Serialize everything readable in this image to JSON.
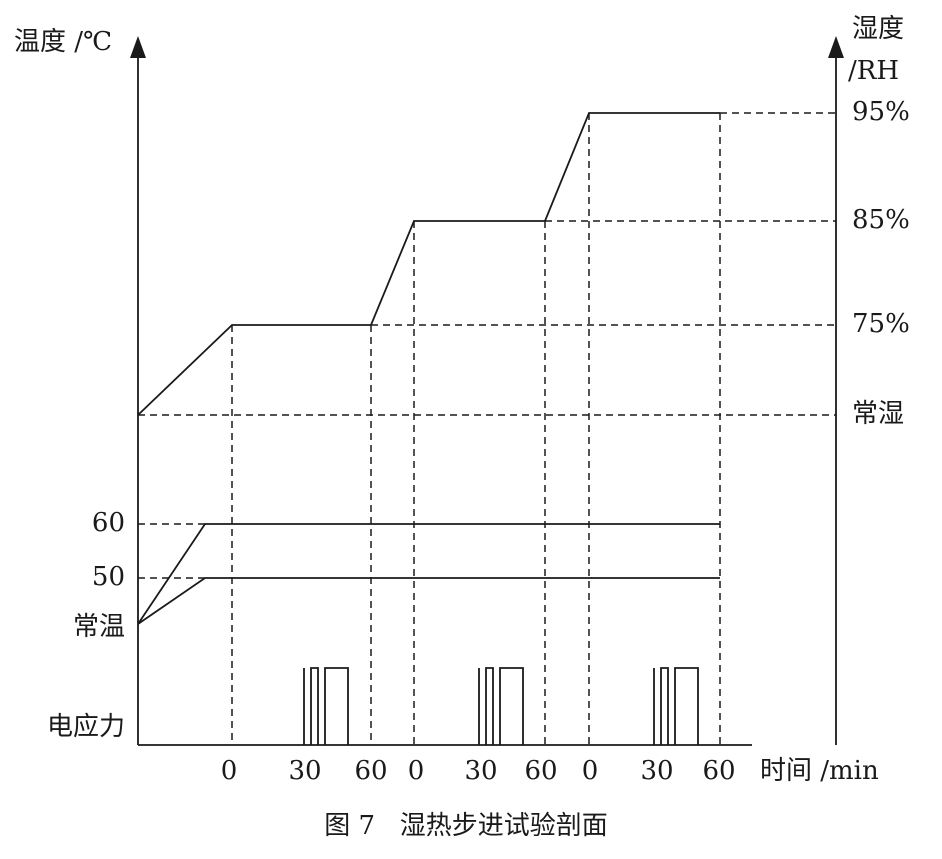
{
  "axes": {
    "left_label": "温度 /℃",
    "right_label_top": "湿度",
    "right_label_bottom": "/RH",
    "time_label": "时间 /min"
  },
  "humidity_levels": [
    "95%",
    "85%",
    "75%",
    "常湿"
  ],
  "temperature_levels": [
    "60",
    "50",
    "常温"
  ],
  "stress_label": "电应力",
  "time_ticks": [
    "0",
    "30",
    "60",
    "0",
    "30",
    "60",
    "0",
    "30",
    "60"
  ],
  "caption": "图 7   湿热步进试验剖面"
}
